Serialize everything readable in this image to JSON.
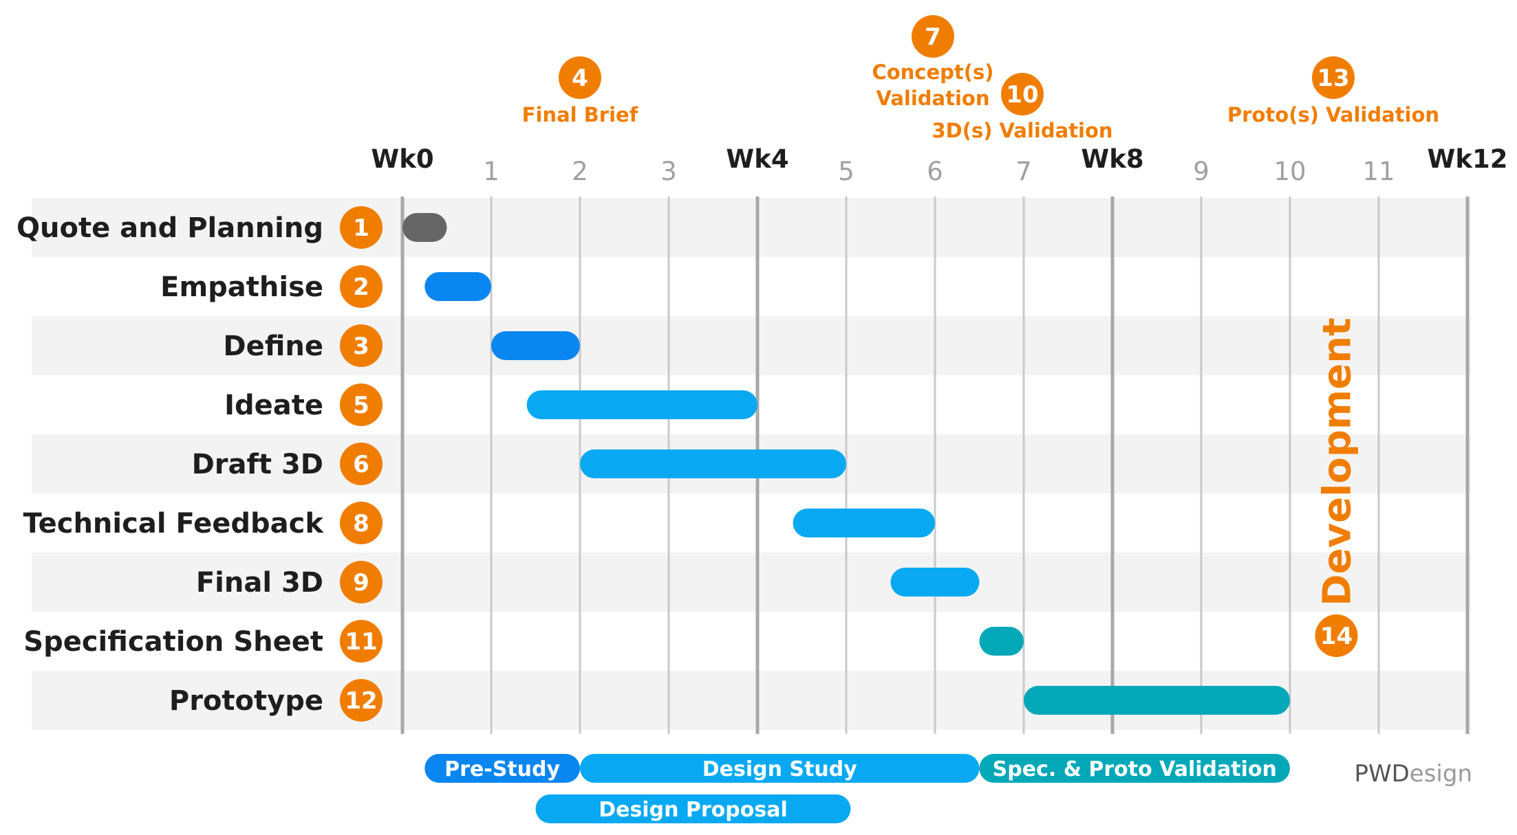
{
  "chart_data": {
    "type": "gantt",
    "x_unit": "week",
    "xlim": [
      0,
      12
    ],
    "week_ticks": [
      {
        "value": 0,
        "label": "Wk0",
        "major": true
      },
      {
        "value": 1,
        "label": "1",
        "major": false
      },
      {
        "value": 2,
        "label": "2",
        "major": false
      },
      {
        "value": 3,
        "label": "3",
        "major": false
      },
      {
        "value": 4,
        "label": "Wk4",
        "major": true
      },
      {
        "value": 5,
        "label": "5",
        "major": false
      },
      {
        "value": 6,
        "label": "6",
        "major": false
      },
      {
        "value": 7,
        "label": "7",
        "major": false
      },
      {
        "value": 8,
        "label": "Wk8",
        "major": true
      },
      {
        "value": 9,
        "label": "9",
        "major": false
      },
      {
        "value": 10,
        "label": "10",
        "major": false
      },
      {
        "value": 11,
        "label": "11",
        "major": false
      },
      {
        "value": 12,
        "label": "Wk12",
        "major": true
      }
    ],
    "tasks": [
      {
        "name": "Quote and Planning",
        "step": "1",
        "start": 0.0,
        "end": 0.5,
        "color": "#666666"
      },
      {
        "name": "Empathise",
        "step": "2",
        "start": 0.25,
        "end": 1.0,
        "color": "#0a86f0"
      },
      {
        "name": "Define",
        "step": "3",
        "start": 1.0,
        "end": 2.0,
        "color": "#0a86f0"
      },
      {
        "name": "Ideate",
        "step": "5",
        "start": 1.4,
        "end": 4.0,
        "color": "#08a9f2"
      },
      {
        "name": "Draft 3D",
        "step": "6",
        "start": 2.0,
        "end": 5.0,
        "color": "#08a9f2"
      },
      {
        "name": "Technical Feedback",
        "step": "8",
        "start": 4.4,
        "end": 6.0,
        "color": "#08a9f2"
      },
      {
        "name": "Final 3D",
        "step": "9",
        "start": 5.5,
        "end": 6.5,
        "color": "#08a9f2"
      },
      {
        "name": "Specification Sheet",
        "step": "11",
        "start": 6.5,
        "end": 7.0,
        "color": "#03a8b8"
      },
      {
        "name": "Prototype",
        "step": "12",
        "start": 7.0,
        "end": 10.0,
        "color": "#03a8b8"
      }
    ],
    "milestones": [
      {
        "step": "4",
        "label_lines": [
          "Final Brief"
        ],
        "week": 2.0
      },
      {
        "step": "7",
        "label_lines": [
          "Concept(s)",
          "Validation"
        ],
        "week": 6.0
      },
      {
        "step": "10",
        "label_lines": [
          "3D(s) Validation"
        ],
        "week": 7.0
      },
      {
        "step": "13",
        "label_lines": [
          "Proto(s) Validation"
        ],
        "week": 10.5
      }
    ],
    "phases": [
      {
        "label": "Pre-Study",
        "start": 0.25,
        "end": 2.0,
        "lane": 0,
        "color": "#0a86f0"
      },
      {
        "label": "Design Study",
        "start": 2.0,
        "end": 6.5,
        "lane": 0,
        "color": "#08a9f2"
      },
      {
        "label": "Spec. & Proto Validation",
        "start": 6.5,
        "end": 10.0,
        "lane": 0,
        "color": "#03a8b8"
      },
      {
        "label": "Design Proposal",
        "start": 1.5,
        "end": 5.05,
        "lane": 1,
        "color": "#08a9f2"
      }
    ],
    "development": {
      "label": "Development",
      "step": "14",
      "week": 10.5
    }
  },
  "colors": {
    "accent_orange": "#f07d00",
    "row_band": "#f3f3f3",
    "grid_minor": "#c9c9c9",
    "grid_major": "#a8a8a8"
  },
  "logo": {
    "part1": "PWD",
    "part2": "esign"
  }
}
